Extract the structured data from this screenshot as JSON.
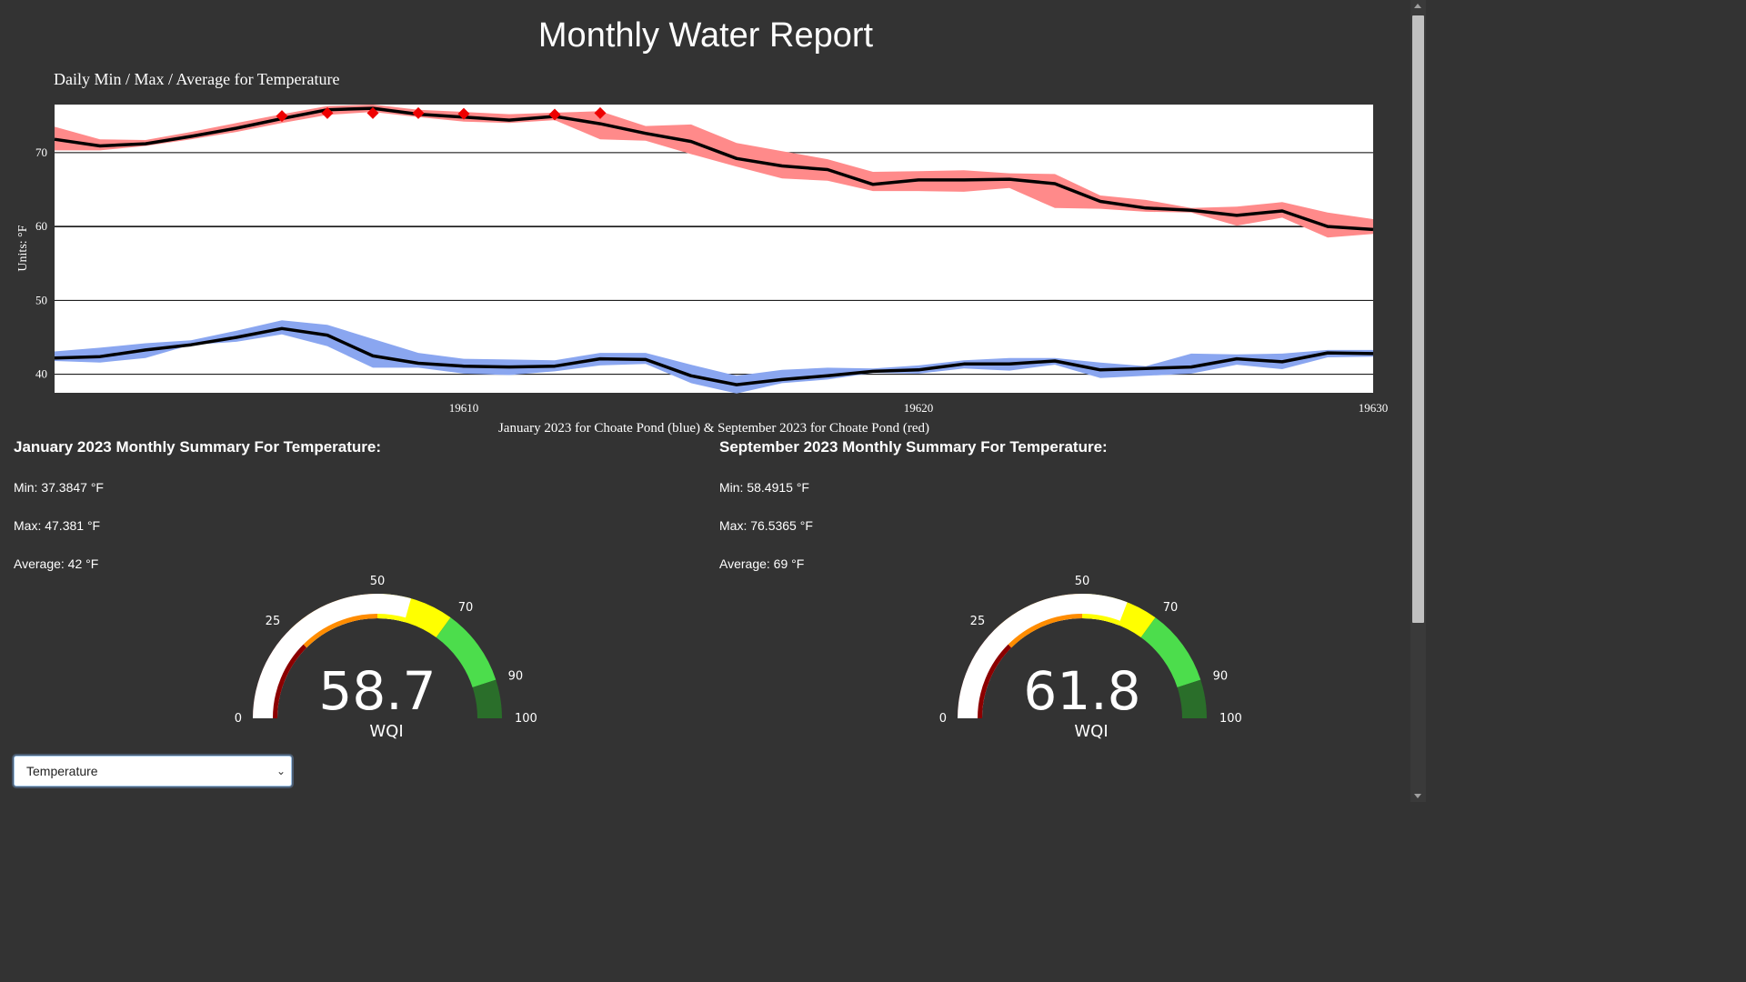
{
  "page": {
    "title": "Monthly Water Report"
  },
  "chart_data": {
    "type": "area",
    "title": "Daily Min / Max / Average for Temperature",
    "xlabel": "January 2023 for Choate Pond (blue) & September 2023 for Choate Pond (red)",
    "ylabel": "Units: °F",
    "xlim": [
      19601,
      19630
    ],
    "ylim": [
      37.5,
      76.5
    ],
    "x_ticks": [
      19610,
      19620,
      19630
    ],
    "y_ticks": [
      40,
      50,
      60,
      70
    ],
    "grid": true,
    "x": [
      19601,
      19602,
      19603,
      19604,
      19605,
      19606,
      19607,
      19608,
      19609,
      19610,
      19611,
      19612,
      19613,
      19614,
      19615,
      19616,
      19617,
      19618,
      19619,
      19620,
      19621,
      19622,
      19623,
      19624,
      19625,
      19626,
      19627,
      19628,
      19629,
      19630
    ],
    "series": [
      {
        "color": "#ff8a8a",
        "avg": [
          71.8,
          70.9,
          71.2,
          72.2,
          73.3,
          74.6,
          75.8,
          76.0,
          75.2,
          74.8,
          74.4,
          74.9,
          73.9,
          72.6,
          71.5,
          69.2,
          68.2,
          67.7,
          65.7,
          66.3,
          66.3,
          66.4,
          65.8,
          63.4,
          62.5,
          62.2,
          61.5,
          62.1,
          60.0,
          59.6
        ],
        "min": [
          70.3,
          70.3,
          70.9,
          71.8,
          72.8,
          74.0,
          75.1,
          75.5,
          74.8,
          74.2,
          74.0,
          74.4,
          71.8,
          71.6,
          69.8,
          68.1,
          66.5,
          66.2,
          64.8,
          64.8,
          64.7,
          65.2,
          62.5,
          62.4,
          62.0,
          61.9,
          60.1,
          61.2,
          58.5,
          59.0
        ],
        "max": [
          73.5,
          71.8,
          71.7,
          72.8,
          74.0,
          75.2,
          76.3,
          76.5,
          75.8,
          75.5,
          75.2,
          75.4,
          75.6,
          73.6,
          73.8,
          71.3,
          70.2,
          69.1,
          67.4,
          67.5,
          67.6,
          67.2,
          67.1,
          64.2,
          63.6,
          62.5,
          62.7,
          63.3,
          61.9,
          61.0
        ],
        "exceedance_markers": [
          19606,
          19607,
          19608,
          19609,
          19610,
          19612,
          19613
        ]
      },
      {
        "color": "#8aa6f0",
        "avg": [
          42.2,
          42.4,
          43.3,
          44.0,
          45.0,
          46.2,
          45.3,
          42.5,
          41.5,
          41.1,
          41.0,
          41.1,
          42.1,
          42.0,
          39.8,
          38.6,
          39.3,
          39.8,
          40.4,
          40.6,
          41.4,
          41.4,
          41.8,
          40.6,
          40.8,
          41.0,
          42.1,
          41.7,
          42.9,
          42.8
        ],
        "min": [
          41.8,
          41.6,
          42.2,
          44.0,
          44.4,
          45.4,
          43.8,
          40.9,
          40.9,
          40.1,
          39.9,
          40.4,
          41.2,
          41.4,
          38.8,
          37.4,
          38.8,
          39.3,
          40.2,
          40.1,
          40.8,
          40.5,
          41.3,
          39.5,
          39.8,
          40.1,
          41.3,
          40.7,
          42.3,
          42.4
        ],
        "max": [
          43.1,
          43.6,
          44.2,
          44.6,
          45.9,
          47.3,
          46.7,
          44.8,
          42.9,
          42.1,
          42.0,
          41.9,
          42.9,
          42.9,
          41.3,
          39.8,
          40.6,
          40.9,
          40.8,
          41.2,
          41.9,
          42.2,
          42.2,
          41.6,
          41.1,
          42.8,
          42.7,
          42.8,
          43.3,
          43.3
        ]
      }
    ]
  },
  "summaries": [
    {
      "heading": "January 2023 Monthly Summary For Temperature:",
      "min": "Min: 37.3847 °F",
      "max": "Max: 47.381 °F",
      "avg": "Average: 42 °F"
    },
    {
      "heading": "September 2023 Monthly Summary For Temperature:",
      "min": "Min: 58.4915 °F",
      "max": "Max: 76.5365 °F",
      "avg": "Average: 69 °F"
    }
  ],
  "gauges": [
    {
      "value": 58.7,
      "value_text": "58.7",
      "label": "WQI"
    },
    {
      "value": 61.8,
      "value_text": "61.8",
      "label": "WQI"
    }
  ],
  "gauge_scale": {
    "ticks": [
      "0",
      "25",
      "50",
      "70",
      "90",
      "100"
    ],
    "tick_values": [
      0,
      25,
      50,
      70,
      90,
      100
    ],
    "bands": [
      {
        "from": 0,
        "to": 25,
        "color": "#8b0000"
      },
      {
        "from": 25,
        "to": 50,
        "color": "#ff8c00"
      },
      {
        "from": 50,
        "to": 70,
        "color": "#ffff00"
      },
      {
        "from": 70,
        "to": 90,
        "color": "#4cdd4c"
      },
      {
        "from": 90,
        "to": 100,
        "color": "#2a6e2a"
      }
    ]
  },
  "parameter_select": {
    "selected": "Temperature"
  }
}
